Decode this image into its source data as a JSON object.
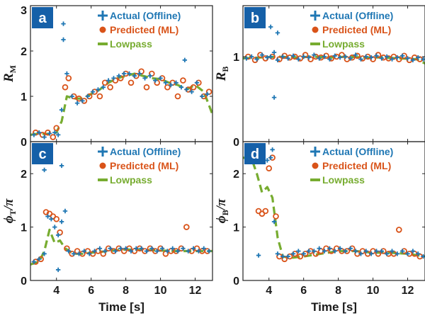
{
  "colors": {
    "actual": "#1f77b4",
    "predicted": "#d95319",
    "lowpass": "#77ac30",
    "badge": "#1560a8"
  },
  "legend": {
    "actual": "Actual (Offline)",
    "predicted": "Predicted (ML)",
    "lowpass": "Lowpass"
  },
  "xlabel": "Time [s]",
  "chart_data": [
    {
      "panel": "a",
      "type": "scatter",
      "ylabel_main": "R",
      "ylabel_sub": "M",
      "xlim": [
        2.5,
        13
      ],
      "ylim": [
        0,
        3
      ],
      "xticks": [
        4,
        6,
        8,
        10,
        12
      ],
      "yticks": [
        0,
        1,
        2,
        3
      ],
      "series": [
        {
          "name": "Actual (Offline)",
          "x": [
            2.7,
            3.0,
            3.3,
            3.6,
            3.9,
            4.1,
            4.3,
            4.4,
            4.6,
            4.9,
            5.2,
            5.5,
            5.8,
            6.1,
            6.4,
            6.7,
            7.0,
            7.3,
            7.6,
            7.9,
            8.2,
            8.5,
            8.8,
            9.1,
            9.4,
            9.7,
            10.0,
            10.3,
            10.6,
            10.9,
            11.2,
            11.5,
            11.8,
            12.1,
            12.4,
            12.7,
            4.4,
            11.4
          ],
          "y": [
            0.15,
            0.2,
            0.1,
            0.18,
            0.2,
            0.15,
            0.7,
            2.25,
            1.5,
            1.0,
            0.85,
            0.9,
            1.0,
            1.1,
            1.15,
            1.2,
            1.35,
            1.4,
            1.45,
            1.5,
            1.5,
            1.45,
            1.5,
            1.4,
            1.45,
            1.35,
            1.4,
            1.3,
            1.25,
            1.3,
            1.2,
            1.15,
            1.1,
            1.3,
            1.0,
            1.05,
            2.6,
            1.8
          ]
        },
        {
          "name": "Predicted (ML)",
          "x": [
            2.8,
            3.2,
            3.5,
            3.8,
            4.0,
            4.5,
            4.7,
            5.0,
            5.3,
            5.6,
            5.9,
            6.2,
            6.5,
            6.8,
            7.1,
            7.4,
            7.7,
            8.0,
            8.3,
            8.6,
            8.9,
            9.2,
            9.5,
            9.8,
            10.1,
            10.4,
            10.7,
            11.0,
            11.3,
            11.6,
            11.9,
            12.2,
            12.5,
            12.8
          ],
          "y": [
            0.2,
            0.15,
            0.2,
            0.1,
            0.3,
            1.2,
            1.4,
            1.0,
            0.95,
            0.9,
            1.0,
            1.1,
            1.0,
            1.3,
            1.2,
            1.35,
            1.4,
            1.5,
            1.3,
            1.45,
            1.55,
            1.2,
            1.5,
            1.3,
            1.4,
            1.2,
            1.3,
            1.0,
            1.35,
            1.15,
            1.2,
            1.3,
            1.0,
            1.1
          ]
        },
        {
          "name": "Lowpass",
          "x": [
            2.5,
            3.0,
            3.5,
            4.0,
            4.3,
            4.6,
            5.0,
            5.5,
            6.0,
            6.5,
            7.0,
            7.5,
            8.0,
            8.5,
            9.0,
            9.5,
            10.0,
            10.5,
            11.0,
            11.5,
            12.0,
            12.5,
            13.0
          ],
          "y": [
            0.15,
            0.18,
            0.17,
            0.2,
            0.45,
            1.0,
            0.95,
            0.95,
            1.05,
            1.15,
            1.3,
            1.4,
            1.45,
            1.5,
            1.45,
            1.4,
            1.38,
            1.3,
            1.25,
            1.15,
            1.25,
            1.1,
            0.6
          ]
        }
      ]
    },
    {
      "panel": "b",
      "type": "scatter",
      "ylabel_main": "R",
      "ylabel_sub": "B",
      "xlim": [
        2.5,
        13
      ],
      "ylim": [
        0,
        1.6
      ],
      "xticks": [
        4,
        6,
        8,
        10,
        12
      ],
      "yticks": [
        0,
        1
      ],
      "series": [
        {
          "name": "Actual (Offline)",
          "x": [
            2.7,
            3.0,
            3.3,
            3.6,
            3.9,
            4.1,
            4.3,
            4.5,
            4.8,
            5.1,
            5.4,
            5.7,
            6.0,
            6.3,
            6.6,
            6.9,
            7.2,
            7.5,
            7.8,
            8.1,
            8.4,
            8.7,
            9.0,
            9.3,
            9.6,
            9.9,
            10.2,
            10.5,
            10.8,
            11.1,
            11.4,
            11.7,
            12.0,
            12.3,
            12.6,
            12.9,
            4.1,
            4.3,
            4.5
          ],
          "y": [
            0.98,
            1.0,
            0.97,
            1.02,
            0.99,
            1.0,
            1.05,
            0.96,
            1.0,
            0.98,
            1.01,
            0.97,
            1.0,
            0.99,
            1.02,
            0.98,
            1.0,
            0.97,
            1.01,
            0.99,
            1.0,
            0.98,
            1.02,
            0.97,
            1.0,
            0.99,
            1.01,
            0.98,
            1.0,
            0.97,
            0.99,
            1.01,
            0.98,
            0.96,
            0.99,
            0.97,
            1.35,
            0.52,
            1.28
          ]
        },
        {
          "name": "Predicted (ML)",
          "x": [
            2.8,
            3.2,
            3.5,
            3.8,
            4.2,
            4.6,
            4.9,
            5.2,
            5.5,
            5.8,
            6.1,
            6.4,
            6.7,
            7.0,
            7.3,
            7.6,
            7.9,
            8.2,
            8.5,
            8.8,
            9.1,
            9.4,
            9.7,
            10.0,
            10.3,
            10.6,
            10.9,
            11.2,
            11.5,
            11.8,
            12.1,
            12.4,
            12.7
          ],
          "y": [
            1.0,
            0.96,
            1.02,
            0.98,
            1.0,
            0.97,
            1.01,
            0.99,
            1.0,
            0.98,
            1.02,
            0.97,
            1.0,
            0.99,
            1.01,
            0.98,
            1.0,
            1.02,
            0.97,
            0.99,
            1.01,
            0.98,
            1.0,
            0.97,
            1.02,
            0.99,
            0.98,
            1.0,
            0.97,
            1.01,
            0.96,
            0.99,
            0.97
          ]
        },
        {
          "name": "Lowpass",
          "x": [
            2.5,
            3.5,
            4.5,
            5.5,
            6.5,
            7.5,
            8.5,
            9.5,
            10.5,
            11.5,
            12.5,
            13.0
          ],
          "y": [
            0.98,
            0.99,
            1.0,
            0.99,
            1.0,
            0.99,
            1.0,
            0.99,
            0.99,
            0.98,
            0.97,
            0.92
          ]
        }
      ]
    },
    {
      "panel": "c",
      "type": "scatter",
      "ylabel_main": "ϕ",
      "ylabel_sub": "T",
      "ylabel_suffix": "/π",
      "xlim": [
        2.5,
        13
      ],
      "ylim": [
        0,
        2.6
      ],
      "xticks": [
        4,
        6,
        8,
        10,
        12
      ],
      "yticks": [
        0,
        1,
        2
      ],
      "series": [
        {
          "name": "Actual (Offline)",
          "x": [
            2.7,
            3.0,
            3.3,
            3.5,
            3.7,
            3.9,
            4.1,
            4.3,
            4.5,
            4.7,
            5.0,
            5.3,
            5.6,
            5.9,
            6.2,
            6.5,
            6.8,
            7.1,
            7.4,
            7.7,
            8.0,
            8.3,
            8.6,
            8.9,
            9.2,
            9.5,
            9.8,
            10.1,
            10.4,
            10.7,
            11.0,
            11.3,
            11.6,
            11.9,
            12.2,
            12.5,
            12.8,
            3.3,
            4.3,
            4.1
          ],
          "y": [
            0.35,
            0.4,
            0.5,
            1.2,
            1.15,
            1.0,
            0.2,
            1.1,
            1.3,
            0.55,
            0.5,
            0.5,
            0.55,
            0.5,
            0.55,
            0.6,
            0.55,
            0.6,
            0.55,
            0.6,
            0.6,
            0.55,
            0.6,
            0.6,
            0.55,
            0.6,
            0.55,
            0.6,
            0.55,
            0.6,
            0.55,
            0.6,
            0.55,
            0.6,
            0.55,
            0.6,
            0.55,
            2.07,
            2.15,
            0.85
          ]
        },
        {
          "name": "Predicted (ML)",
          "x": [
            2.8,
            3.1,
            3.4,
            3.6,
            3.8,
            4.0,
            4.2,
            4.6,
            4.9,
            5.2,
            5.5,
            5.8,
            6.1,
            6.4,
            6.7,
            7.0,
            7.3,
            7.6,
            7.9,
            8.2,
            8.5,
            8.8,
            9.1,
            9.4,
            9.7,
            10.0,
            10.3,
            10.6,
            10.9,
            11.2,
            11.5,
            11.8,
            12.1,
            12.4,
            12.7
          ],
          "y": [
            0.35,
            0.4,
            1.28,
            1.25,
            1.2,
            1.15,
            0.9,
            0.6,
            0.5,
            0.55,
            0.5,
            0.55,
            0.5,
            0.55,
            0.5,
            0.6,
            0.55,
            0.6,
            0.55,
            0.6,
            0.55,
            0.6,
            0.55,
            0.6,
            0.55,
            0.6,
            0.5,
            0.55,
            0.55,
            0.6,
            1.0,
            0.55,
            0.6,
            0.55,
            0.55
          ]
        },
        {
          "name": "Lowpass",
          "x": [
            2.5,
            3.0,
            3.3,
            3.6,
            3.9,
            4.2,
            4.5,
            5.0,
            5.5,
            6.0,
            7.0,
            8.0,
            9.0,
            10.0,
            11.0,
            12.0,
            13.0
          ],
          "y": [
            0.3,
            0.35,
            0.55,
            0.95,
            0.7,
            0.75,
            0.6,
            0.5,
            0.5,
            0.52,
            0.55,
            0.58,
            0.57,
            0.56,
            0.55,
            0.55,
            0.55
          ]
        }
      ]
    },
    {
      "panel": "d",
      "type": "scatter",
      "ylabel_main": "ϕ",
      "ylabel_sub": "B",
      "ylabel_suffix": "/π",
      "xlim": [
        2.5,
        13
      ],
      "ylim": [
        0,
        2.6
      ],
      "xticks": [
        4,
        6,
        8,
        10,
        12
      ],
      "yticks": [
        0,
        1,
        2
      ],
      "series": [
        {
          "name": "Actual (Offline)",
          "x": [
            2.7,
            3.0,
            3.3,
            3.6,
            3.9,
            4.1,
            4.3,
            4.5,
            4.8,
            5.1,
            5.4,
            5.7,
            6.0,
            6.3,
            6.6,
            6.9,
            7.2,
            7.5,
            7.8,
            8.1,
            8.4,
            8.7,
            9.0,
            9.3,
            9.6,
            9.9,
            10.2,
            10.5,
            10.8,
            11.1,
            11.4,
            11.7,
            12.0,
            12.3,
            12.6,
            12.9,
            3.4,
            4.2
          ],
          "y": [
            2.3,
            2.28,
            2.27,
            2.3,
            2.25,
            2.3,
            1.1,
            0.5,
            0.45,
            0.45,
            0.5,
            0.55,
            0.5,
            0.55,
            0.55,
            0.6,
            0.55,
            0.6,
            0.55,
            0.6,
            0.55,
            0.6,
            0.55,
            0.5,
            0.55,
            0.5,
            0.55,
            0.55,
            0.5,
            0.55,
            0.5,
            0.55,
            0.5,
            0.55,
            0.5,
            0.45,
            0.47,
            2.45
          ]
        },
        {
          "name": "Predicted (ML)",
          "x": [
            2.8,
            3.2,
            3.4,
            3.6,
            3.8,
            4.0,
            4.2,
            4.4,
            4.6,
            4.9,
            5.2,
            5.5,
            5.8,
            6.1,
            6.4,
            6.7,
            7.0,
            7.3,
            7.6,
            7.9,
            8.2,
            8.5,
            8.8,
            9.1,
            9.4,
            9.7,
            10.0,
            10.3,
            10.6,
            10.9,
            11.2,
            11.5,
            11.8,
            12.1,
            12.4,
            12.7
          ],
          "y": [
            2.3,
            2.3,
            1.3,
            1.25,
            1.3,
            2.1,
            2.3,
            1.2,
            0.45,
            0.4,
            0.45,
            0.5,
            0.45,
            0.5,
            0.55,
            0.5,
            0.55,
            0.6,
            0.55,
            0.6,
            0.55,
            0.55,
            0.6,
            0.5,
            0.55,
            0.5,
            0.55,
            0.5,
            0.55,
            0.5,
            0.5,
            0.95,
            0.55,
            0.5,
            0.5,
            0.45
          ]
        },
        {
          "name": "Lowpass",
          "x": [
            2.5,
            3.0,
            3.3,
            3.6,
            3.9,
            4.2,
            4.5,
            4.8,
            5.2,
            6.0,
            7.0,
            8.0,
            9.0,
            10.0,
            11.0,
            12.0,
            13.0
          ],
          "y": [
            2.3,
            2.28,
            2.0,
            1.65,
            1.75,
            1.55,
            0.8,
            0.45,
            0.42,
            0.45,
            0.5,
            0.55,
            0.55,
            0.52,
            0.52,
            0.5,
            0.45
          ]
        }
      ]
    }
  ]
}
